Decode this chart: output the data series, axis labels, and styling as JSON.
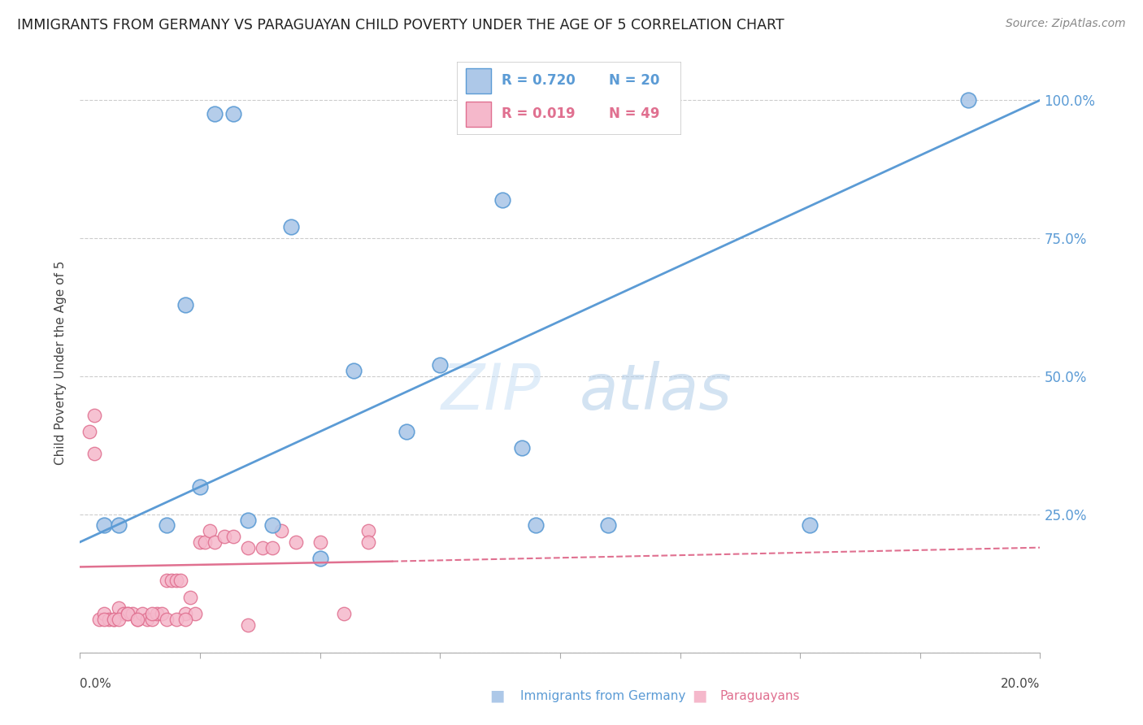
{
  "title": "IMMIGRANTS FROM GERMANY VS PARAGUAYAN CHILD POVERTY UNDER THE AGE OF 5 CORRELATION CHART",
  "source": "Source: ZipAtlas.com",
  "ylabel": "Child Poverty Under the Age of 5",
  "legend_blue_R": "R = 0.720",
  "legend_blue_N": "N = 20",
  "legend_pink_R": "R = 0.019",
  "legend_pink_N": "N = 49",
  "legend_blue_label": "Immigrants from Germany",
  "legend_pink_label": "Paraguayans",
  "watermark": "ZIPatlas",
  "xmin": 0.0,
  "xmax": 0.2,
  "ymin": 0.0,
  "ymax": 1.05,
  "ytick_values": [
    0.0,
    0.25,
    0.5,
    0.75,
    1.0
  ],
  "ytick_labels_right": [
    "",
    "25.0%",
    "50.0%",
    "75.0%",
    "100.0%"
  ],
  "blue_scatter_x": [
    0.028,
    0.032,
    0.044,
    0.075,
    0.057,
    0.088,
    0.092,
    0.152,
    0.185,
    0.05,
    0.035,
    0.068,
    0.095,
    0.11,
    0.04,
    0.022,
    0.005,
    0.008,
    0.018,
    0.025
  ],
  "blue_scatter_y": [
    0.975,
    0.975,
    0.77,
    0.52,
    0.51,
    0.82,
    0.37,
    0.23,
    1.0,
    0.17,
    0.24,
    0.4,
    0.23,
    0.23,
    0.23,
    0.63,
    0.23,
    0.23,
    0.23,
    0.3
  ],
  "pink_scatter_x": [
    0.002,
    0.003,
    0.004,
    0.005,
    0.006,
    0.007,
    0.008,
    0.009,
    0.01,
    0.011,
    0.012,
    0.013,
    0.014,
    0.015,
    0.016,
    0.017,
    0.018,
    0.019,
    0.02,
    0.021,
    0.022,
    0.023,
    0.024,
    0.025,
    0.026,
    0.027,
    0.028,
    0.03,
    0.032,
    0.035,
    0.038,
    0.04,
    0.042,
    0.045,
    0.05,
    0.055,
    0.06,
    0.003,
    0.005,
    0.007,
    0.008,
    0.01,
    0.012,
    0.015,
    0.018,
    0.02,
    0.022,
    0.035,
    0.06
  ],
  "pink_scatter_y": [
    0.4,
    0.43,
    0.06,
    0.07,
    0.06,
    0.06,
    0.08,
    0.07,
    0.07,
    0.07,
    0.06,
    0.07,
    0.06,
    0.06,
    0.07,
    0.07,
    0.13,
    0.13,
    0.13,
    0.13,
    0.07,
    0.1,
    0.07,
    0.2,
    0.2,
    0.22,
    0.2,
    0.21,
    0.21,
    0.19,
    0.19,
    0.19,
    0.22,
    0.2,
    0.2,
    0.07,
    0.22,
    0.36,
    0.06,
    0.06,
    0.06,
    0.07,
    0.06,
    0.07,
    0.06,
    0.06,
    0.06,
    0.05,
    0.2
  ],
  "blue_line_x": [
    0.0,
    0.2
  ],
  "blue_line_y": [
    0.2,
    1.0
  ],
  "pink_solid_line_x": [
    0.0,
    0.065
  ],
  "pink_solid_line_y": [
    0.155,
    0.165
  ],
  "pink_dash_line_x": [
    0.065,
    0.2
  ],
  "pink_dash_line_y": [
    0.165,
    0.19
  ],
  "blue_color": "#adc8e8",
  "blue_edge_color": "#5b9bd5",
  "blue_line_color": "#5b9bd5",
  "pink_color": "#f5b8cb",
  "pink_edge_color": "#e07090",
  "pink_line_color": "#e07090",
  "background_color": "#ffffff",
  "grid_color": "#cccccc",
  "title_color": "#222222",
  "right_label_color": "#5b9bd5"
}
